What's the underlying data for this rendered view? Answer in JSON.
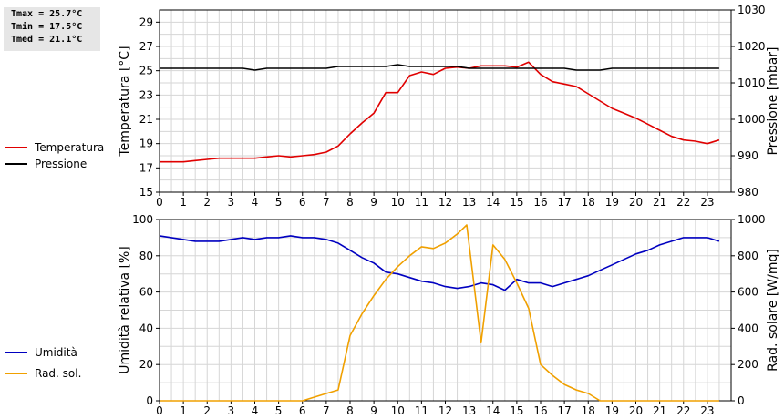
{
  "stats": {
    "tmax": "Tmax = 25.7°C",
    "tmin": "Tmin = 17.5°C",
    "tmed": "Tmed = 21.1°C"
  },
  "chart_data": [
    {
      "type": "line",
      "ylabel_left": "Temperatura [°C]",
      "ylabel_right": "Pressione [mbar]",
      "x_ticks": [
        0,
        1,
        2,
        3,
        4,
        5,
        6,
        7,
        8,
        9,
        10,
        11,
        12,
        13,
        14,
        15,
        16,
        17,
        18,
        19,
        20,
        21,
        22,
        23
      ],
      "xlim": [
        0,
        24
      ],
      "ylim_left": [
        15,
        30
      ],
      "y_ticks_left": [
        15,
        17,
        19,
        21,
        23,
        25,
        27,
        29
      ],
      "ylim_right": [
        980,
        1030
      ],
      "y_ticks_right": [
        980,
        990,
        1000,
        1010,
        1020,
        1030
      ],
      "grid": true,
      "legend": "left",
      "series": [
        {
          "name": "Temperatura",
          "axis": "left",
          "color": "#e00000",
          "x": [
            0,
            1,
            1.5,
            2,
            2.5,
            3,
            3.5,
            4,
            4.5,
            5,
            5.5,
            6,
            6.5,
            7,
            7.5,
            8,
            8.5,
            9,
            9.5,
            10,
            10.5,
            11,
            11.5,
            12,
            12.5,
            13,
            13.5,
            14,
            14.5,
            15,
            15.5,
            16,
            16.5,
            17,
            17.5,
            18,
            18.5,
            19,
            19.5,
            20,
            20.5,
            21,
            21.5,
            22,
            22.5,
            23,
            23.5
          ],
          "values": [
            17.5,
            17.5,
            17.6,
            17.7,
            17.8,
            17.8,
            17.8,
            17.8,
            17.9,
            18.0,
            17.9,
            18.0,
            18.1,
            18.3,
            18.8,
            19.8,
            20.7,
            21.5,
            23.2,
            23.2,
            24.6,
            24.9,
            24.7,
            25.2,
            25.3,
            25.2,
            25.4,
            25.4,
            25.4,
            25.3,
            25.7,
            24.7,
            24.1,
            23.9,
            23.7,
            23.1,
            22.5,
            21.9,
            21.5,
            21.1,
            20.6,
            20.1,
            19.6,
            19.3,
            19.2,
            19.0,
            19.3
          ]
        },
        {
          "name": "Pressione",
          "axis": "right",
          "color": "#000000",
          "x": [
            0,
            1,
            2,
            3,
            3.5,
            4,
            4.5,
            5,
            6,
            7,
            7.5,
            8,
            9,
            9.5,
            10,
            10.5,
            11,
            12,
            12.5,
            13,
            14,
            15,
            16,
            17,
            17.5,
            18,
            18.5,
            19,
            20,
            21,
            22,
            23,
            23.5
          ],
          "values": [
            1014,
            1014,
            1014,
            1014,
            1014,
            1013.5,
            1014,
            1014,
            1014,
            1014,
            1014.5,
            1014.5,
            1014.5,
            1014.5,
            1015,
            1014.5,
            1014.5,
            1014.5,
            1014.5,
            1014,
            1014,
            1014,
            1014,
            1014,
            1013.5,
            1013.5,
            1013.5,
            1014,
            1014,
            1014,
            1014,
            1014,
            1014
          ]
        }
      ]
    },
    {
      "type": "line",
      "ylabel_left": "Umidità relativa [%]",
      "ylabel_right": "Rad. solare [W/mq]",
      "x_ticks": [
        0,
        1,
        2,
        3,
        4,
        5,
        6,
        7,
        8,
        9,
        10,
        11,
        12,
        13,
        14,
        15,
        16,
        17,
        18,
        19,
        20,
        21,
        22,
        23
      ],
      "xlim": [
        0,
        24
      ],
      "ylim_left": [
        0,
        100
      ],
      "y_ticks_left": [
        0,
        20,
        40,
        60,
        80,
        100
      ],
      "ylim_right": [
        0,
        1000
      ],
      "y_ticks_right": [
        0,
        200,
        400,
        600,
        800,
        1000
      ],
      "grid": true,
      "legend": "left",
      "series": [
        {
          "name": "Umidità",
          "axis": "left",
          "color": "#0000c0",
          "x": [
            0,
            1,
            1.5,
            2,
            2.5,
            3,
            3.5,
            4,
            4.5,
            5,
            5.5,
            6,
            6.5,
            7,
            7.5,
            8,
            8.5,
            9,
            9.5,
            10,
            10.5,
            11,
            11.5,
            12,
            12.5,
            13,
            13.5,
            14,
            14.5,
            15,
            15.5,
            16,
            16.5,
            17,
            17.5,
            18,
            18.5,
            19,
            19.5,
            20,
            20.5,
            21,
            21.5,
            22,
            22.5,
            23,
            23.5
          ],
          "values": [
            91,
            89,
            88,
            88,
            88,
            89,
            90,
            89,
            90,
            90,
            91,
            90,
            90,
            89,
            87,
            83,
            79,
            76,
            71,
            70,
            68,
            66,
            65,
            63,
            62,
            63,
            65,
            64,
            61,
            67,
            65,
            65,
            63,
            65,
            67,
            69,
            72,
            75,
            78,
            81,
            83,
            86,
            88,
            90,
            90,
            90,
            88
          ]
        },
        {
          "name": "Rad. sol.",
          "axis": "right",
          "color": "#f0a000",
          "x": [
            0,
            1,
            2,
            3,
            4,
            5,
            6,
            6.5,
            7,
            7.5,
            8,
            8.5,
            9,
            9.5,
            10,
            10.5,
            11,
            11.5,
            12,
            12.5,
            12.9,
            13.5,
            14,
            14.5,
            15,
            15.5,
            16,
            16.5,
            17,
            17.5,
            18,
            18.5,
            19,
            20,
            21,
            22,
            23,
            23.5
          ],
          "values": [
            0,
            0,
            0,
            0,
            0,
            0,
            0,
            20,
            40,
            60,
            360,
            480,
            580,
            670,
            740,
            800,
            850,
            840,
            870,
            920,
            970,
            320,
            860,
            780,
            650,
            510,
            200,
            140,
            90,
            60,
            40,
            0,
            0,
            0,
            0,
            0,
            0,
            0
          ]
        }
      ]
    }
  ]
}
